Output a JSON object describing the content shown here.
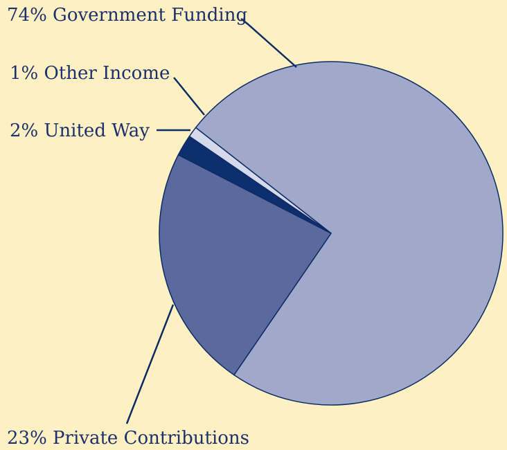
{
  "chart_data": {
    "type": "pie",
    "slices": [
      {
        "label": "74% Government Funding",
        "category": "Government Funding",
        "value": 74,
        "color": "#a0a9c9"
      },
      {
        "label": "23% Private Contributions",
        "category": "Private Contributions",
        "value": 23,
        "color": "#5a6a9e"
      },
      {
        "label": "2% United Way",
        "category": "United Way",
        "value": 2,
        "color": "#0d2f6e"
      },
      {
        "label": "1% Other Income",
        "category": "Other Income",
        "value": 1,
        "color": "#d4d9ec"
      }
    ],
    "colors": {
      "background": "#fdf1c3",
      "label_text": "#1e2f6e",
      "outline": "#0d2a66"
    }
  }
}
